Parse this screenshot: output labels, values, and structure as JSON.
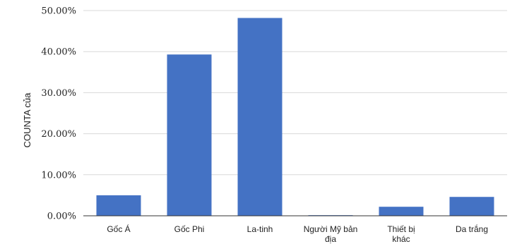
{
  "chart_data": {
    "type": "bar",
    "title": "",
    "xlabel": "",
    "ylabel": "COUNTA của",
    "categories": [
      "Gốc Á",
      "Gốc Phi",
      "La-tinh",
      "Người Mỹ bản địa",
      "Thiết bị khác",
      "Da trắng"
    ],
    "category_label_lines": [
      [
        "Gốc Á"
      ],
      [
        "Gốc Phi"
      ],
      [
        "La-tinh"
      ],
      [
        "Người Mỹ bản",
        "địa"
      ],
      [
        "Thiết bị",
        "khác"
      ],
      [
        "Da trắng"
      ]
    ],
    "values": [
      5.0,
      39.3,
      48.2,
      0.15,
      2.2,
      4.6
    ],
    "ylim": [
      0,
      50
    ],
    "yticks": [
      "0.00%",
      "10.00%",
      "20.00%",
      "30.00%",
      "40.00%",
      "50.00%"
    ],
    "ytick_values": [
      0,
      10,
      20,
      30,
      40,
      50
    ],
    "grid": true,
    "legend": "none",
    "bar_color": "#4472c4",
    "grid_color": "#d9d9d9"
  }
}
